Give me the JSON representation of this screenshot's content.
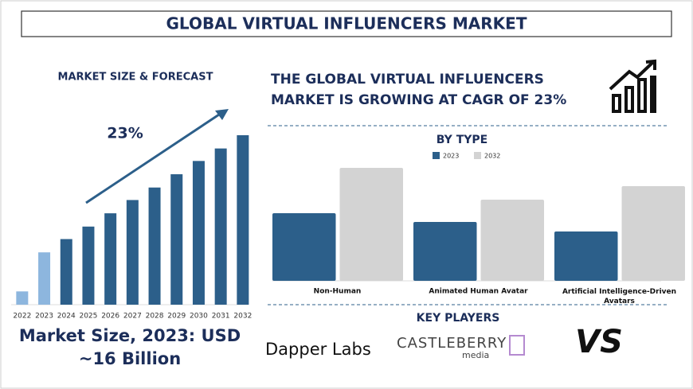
{
  "title": "GLOBAL VIRTUAL INFLUENCERS MARKET",
  "headline": [
    "THE GLOBAL VIRTUAL INFLUENCERS",
    "MARKET IS GROWING AT CAGR OF 23%"
  ],
  "market_size": [
    "Market Size, 2023: USD",
    "~16 Billion"
  ],
  "key_players_title": "KEY PLAYERS",
  "key_players": [
    "Dapper Labs",
    "CASTLEBERRY",
    "media",
    "VS"
  ],
  "chart_data": [
    {
      "type": "bar",
      "title": "MARKET SIZE & FORECAST",
      "annotation": "23%",
      "categories": [
        "2022",
        "2023",
        "2024",
        "2025",
        "2026",
        "2027",
        "2028",
        "2029",
        "2030",
        "2031",
        "2032"
      ],
      "values": [
        17,
        67,
        84,
        100,
        117,
        134,
        150,
        167,
        184,
        200,
        217
      ],
      "colors": [
        "#8db6de",
        "#8db6de",
        "#2c5f8a",
        "#2c5f8a",
        "#2c5f8a",
        "#2c5f8a",
        "#2c5f8a",
        "#2c5f8a",
        "#2c5f8a",
        "#2c5f8a",
        "#2c5f8a"
      ],
      "ylim": [
        0,
        220
      ]
    },
    {
      "type": "grouped-bar",
      "title": "BY TYPE",
      "categories": [
        "Non-Human",
        "Animated Human Avatar",
        "Artificial Intelligence-Driven Avatars"
      ],
      "series": [
        {
          "name": "2023",
          "color": "#2c5f8a",
          "values": [
            85,
            74,
            62
          ]
        },
        {
          "name": "2032",
          "color": "#d3d3d3",
          "values": [
            142,
            102,
            119
          ]
        }
      ],
      "ylim": [
        0,
        150
      ]
    }
  ]
}
